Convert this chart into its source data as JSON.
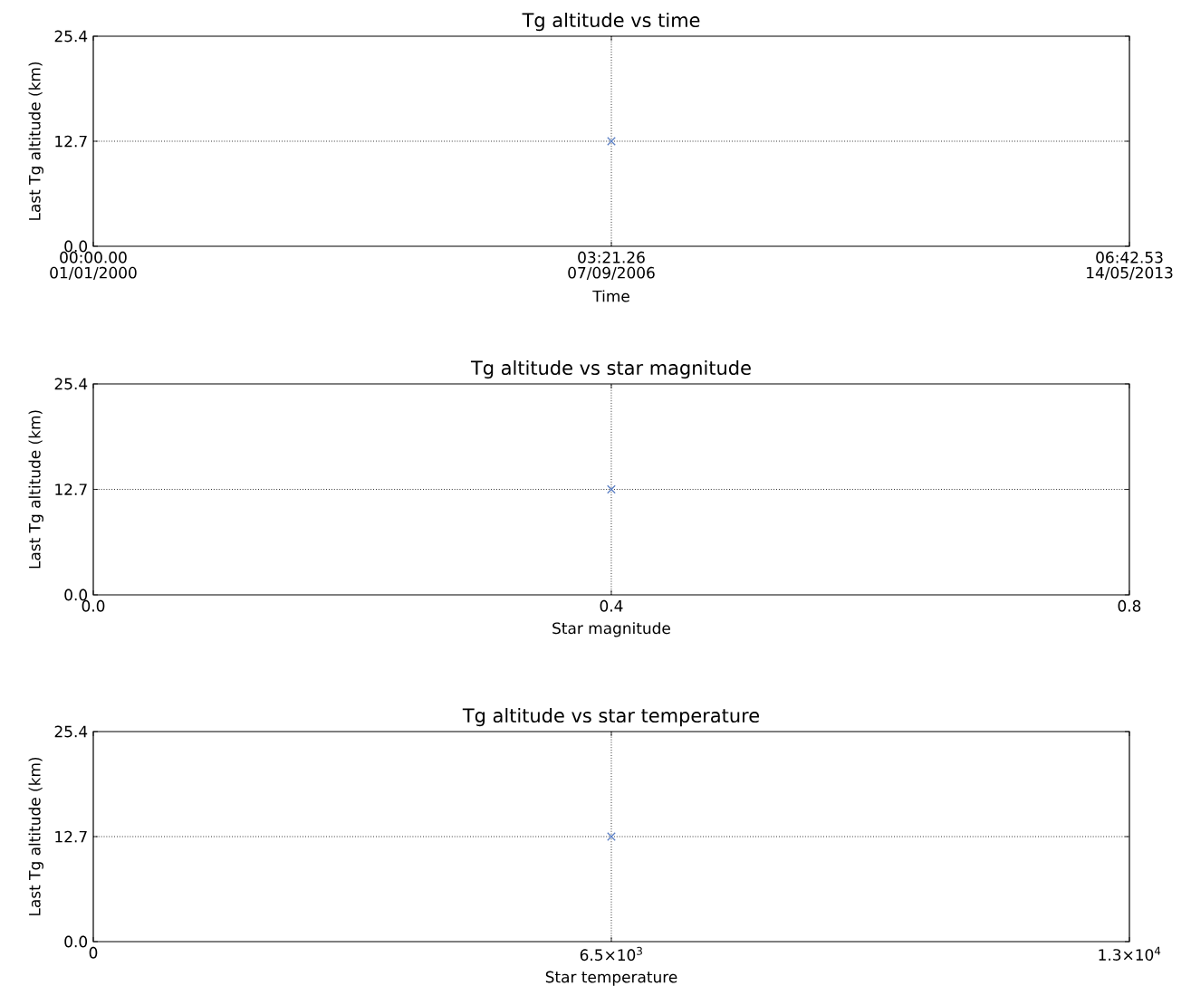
{
  "chart_data": [
    {
      "type": "scatter",
      "title": "Tg altitude vs time",
      "xlabel": "Time",
      "ylabel": "Last Tg altitude (km)",
      "x": [
        "2006-09-07"
      ],
      "values": [
        12.7
      ],
      "color": "#5b7fc4",
      "marker": "cross",
      "xlim": [
        "2000-01-01",
        "2013-05-14"
      ],
      "xticks": [
        {
          "value": "2000-01-01",
          "label": "00:00.00 01/01/2000"
        },
        {
          "value": "2006-09-07",
          "label": "03:21.26 07/09/2006"
        },
        {
          "value": "2013-05-14",
          "label": "06:42.53 14/05/2013"
        }
      ],
      "ylim": [
        0,
        25.4
      ],
      "yticks": [
        {
          "value": 0,
          "label": "0.0"
        },
        {
          "value": 12.7,
          "label": "12.7"
        },
        {
          "value": 25.4,
          "label": "25.4"
        }
      ],
      "ref_lines": [
        {
          "axis": "x",
          "value": "2006-09-07",
          "color": "#000000",
          "line_style": "dotted"
        },
        {
          "axis": "y",
          "value": 12.7,
          "color": "#000000",
          "line_style": "dotted"
        }
      ]
    },
    {
      "type": "scatter",
      "title": "Tg altitude vs star magnitude",
      "xlabel": "Star magnitude",
      "ylabel": "Last Tg altitude (km)",
      "x": [
        0.4
      ],
      "values": [
        12.7
      ],
      "color": "#5b7fc4",
      "marker": "cross",
      "xlim": [
        0,
        0.8
      ],
      "xticks": [
        {
          "value": 0,
          "label": "0.0"
        },
        0.4,
        0.8
      ],
      "ylim": [
        0,
        25.4
      ],
      "yticks": [
        {
          "value": 0,
          "label": "0.0"
        },
        {
          "value": 12.7,
          "label": "12.7"
        },
        {
          "value": 25.4,
          "label": "25.4"
        }
      ],
      "ref_lines": [
        {
          "axis": "x",
          "value": 0.4,
          "color": "#000000",
          "line_style": "dotted"
        },
        {
          "axis": "y",
          "value": 12.7,
          "color": "#000000",
          "line_style": "dotted"
        }
      ]
    },
    {
      "type": "scatter",
      "title": "Tg altitude vs star temperature",
      "xlabel": "Star temperature",
      "ylabel": "Last Tg altitude (km)",
      "x": [
        6500
      ],
      "values": [
        12.7
      ],
      "color": "#5b7fc4",
      "marker": "cross",
      "xlim": [
        0,
        13000
      ],
      "xticks": [
        0,
        {
          "value": 6500,
          "label": "6.5×10$^{3}$"
        },
        {
          "value": 13000,
          "label": "1.3×10$^{4}$"
        }
      ],
      "ylim": [
        0,
        25.4
      ],
      "yticks": [
        {
          "value": 0,
          "label": "0.0"
        },
        {
          "value": 12.7,
          "label": "12.7"
        },
        {
          "value": 25.4,
          "label": "25.4"
        }
      ],
      "ref_lines": [
        {
          "axis": "x",
          "value": 6500,
          "color": "#000000",
          "line_style": "dotted"
        },
        {
          "axis": "y",
          "value": 12.7,
          "color": "#000000",
          "line_style": "dotted"
        }
      ]
    }
  ]
}
